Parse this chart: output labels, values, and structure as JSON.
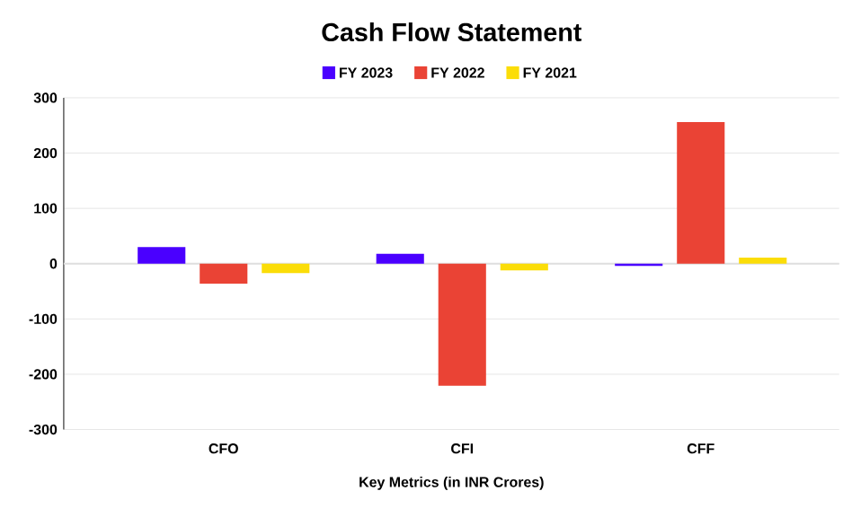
{
  "chart_data": {
    "type": "bar",
    "title": "Cash Flow Statement",
    "xlabel": "Key Metrics (in INR Crores)",
    "categories": [
      "CFO",
      "CFI",
      "CFF"
    ],
    "series": [
      {
        "name": "FY 2023",
        "color": "#4a00ff",
        "values": [
          30,
          18,
          -4
        ]
      },
      {
        "name": "FY 2022",
        "color": "#ea4335",
        "values": [
          -36,
          -221,
          256
        ]
      },
      {
        "name": "FY 2021",
        "color": "#fbdd08",
        "values": [
          -17,
          -12,
          11
        ]
      }
    ],
    "ylim": [
      -300,
      300
    ],
    "yticks": [
      -300,
      -200,
      -100,
      0,
      100,
      200,
      300
    ],
    "grid": "y",
    "legend": "top"
  }
}
